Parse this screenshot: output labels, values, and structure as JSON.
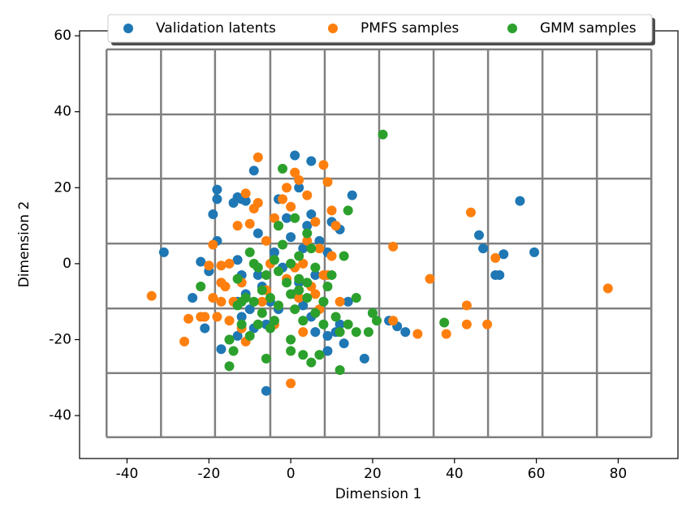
{
  "chart_data": {
    "type": "scatter",
    "xlabel": "Dimension 1",
    "ylabel": "Dimension 2",
    "xlim": [
      -51.6,
      94.6
    ],
    "ylim": [
      -51.3,
      61.3
    ],
    "xticks": [
      -40,
      -20,
      0,
      20,
      40,
      60,
      80
    ],
    "yticks": [
      -40,
      -20,
      0,
      20,
      40,
      60
    ],
    "partition_x": [
      -45.0,
      -31.7,
      -18.5,
      -5.0,
      8.3,
      21.6,
      34.9,
      48.2,
      61.5,
      74.8,
      88.1
    ],
    "partition_y": [
      56.4,
      39.3,
      22.4,
      5.3,
      -11.8,
      -28.8,
      -45.7
    ],
    "partition_color": "#808080",
    "legend": "upper center",
    "series": [
      {
        "name": "Validation latents",
        "color": "#1f77b4",
        "x": [
          -31,
          -22,
          -24,
          -21,
          -18,
          -18,
          -19,
          -18,
          -17,
          -15,
          -14,
          -13,
          -12,
          -11,
          -13,
          -12,
          -13,
          -12,
          -13,
          -11,
          -10,
          -9,
          -9,
          -8,
          -7,
          -6,
          -6,
          -5,
          -4,
          -3,
          -2,
          -1,
          0,
          1,
          2,
          2,
          3,
          4,
          5,
          5,
          6,
          6,
          7,
          8,
          9,
          9,
          10,
          11,
          12,
          13,
          14,
          15,
          18,
          20,
          24,
          26,
          28,
          46,
          47,
          50,
          51,
          52,
          56,
          59.5,
          -20,
          -3,
          1,
          5,
          -8,
          3,
          9,
          12
        ],
        "values": [
          3,
          0.5,
          -9,
          -17,
          19.5,
          17,
          13,
          6,
          -22.5,
          -20,
          16,
          17.5,
          17,
          16.5,
          1,
          -3,
          -10,
          -14,
          -19,
          -8,
          -12,
          24.5,
          -17,
          8,
          -6,
          -16,
          -33.5,
          -10,
          3,
          17,
          -1,
          12,
          7,
          28.5,
          20,
          -5,
          4,
          10,
          27,
          13,
          -3,
          -18,
          6,
          -10,
          -23,
          -19,
          11,
          -18,
          -16,
          -21,
          -10,
          18,
          -25,
          -13,
          -15,
          -16.5,
          -18,
          7.5,
          4,
          -3,
          -3,
          2.5,
          16.5,
          3,
          -2,
          -12,
          -8,
          -14,
          -3,
          -11,
          3,
          9
        ]
      },
      {
        "name": "PMFS samples",
        "color": "#ff7f0e",
        "x": [
          -34,
          -26,
          -25,
          -22,
          -21,
          -20,
          -19,
          -19,
          -18,
          -17,
          -17,
          -16,
          -15,
          -15,
          -14,
          -13,
          -12,
          -12,
          -11,
          -11,
          -10,
          -9,
          -8,
          -8,
          -7,
          -6,
          -6,
          -5,
          -4,
          -4,
          -3,
          -2,
          -1,
          0,
          0,
          1,
          1,
          2,
          2,
          3,
          4,
          4,
          5,
          6,
          7,
          7,
          8,
          8,
          9,
          9,
          10,
          10,
          11,
          12,
          25,
          25,
          31,
          34,
          38,
          43,
          43,
          44,
          48,
          50,
          77.5,
          -17,
          -1,
          6,
          3
        ],
        "values": [
          -8.5,
          -20.5,
          -14.5,
          -14,
          -14,
          -0.5,
          5,
          -9,
          -14,
          -0.5,
          -5,
          -6,
          0,
          -15,
          -10,
          10,
          -5,
          -17,
          -20.5,
          18.5,
          10.5,
          14.5,
          28,
          16,
          -10,
          6,
          -7,
          0,
          12,
          -16,
          10,
          17,
          20,
          15,
          -31.5,
          24,
          -1,
          22,
          -9,
          -18,
          18,
          6,
          -6,
          11,
          4,
          -12,
          -3,
          26,
          21.5,
          -3,
          2,
          14,
          10,
          -10,
          4.5,
          -15,
          -18.5,
          -4,
          -18.5,
          -16,
          -11,
          13.5,
          -16,
          1.5,
          -6.5,
          -10,
          -4,
          -8,
          0
        ]
      },
      {
        "name": "GMM samples",
        "color": "#2ca02c",
        "x": [
          -22,
          -15,
          -15,
          -14,
          -13,
          -12,
          -12,
          -11,
          -10,
          -9,
          -9,
          -8,
          -7,
          -6,
          -5,
          -5,
          -4,
          -3,
          -3,
          -2,
          -2,
          -1,
          0,
          0,
          0,
          1,
          1,
          2,
          2,
          3,
          3,
          4,
          4,
          5,
          6,
          6,
          7,
          8,
          9,
          10,
          11,
          12,
          12,
          13,
          14,
          14,
          16,
          16,
          19,
          20,
          21,
          22.5,
          37.5,
          -13,
          -10,
          -6,
          -4,
          0,
          2,
          4,
          -7,
          -3,
          8,
          5,
          -8
        ],
        "values": [
          -6,
          -20,
          -27,
          -23,
          -11,
          -16,
          -10,
          -9,
          -19,
          -10,
          0,
          -16,
          -7,
          -25,
          -17,
          -9,
          -15,
          -2,
          10,
          25,
          5,
          -5,
          -8,
          -20,
          -23,
          12,
          -12,
          2,
          -4,
          -15,
          -24,
          8,
          -9,
          -26,
          -1,
          -13,
          -24,
          -16,
          -6,
          -3,
          -14,
          -28,
          -18,
          2,
          -16,
          14,
          -18,
          -9,
          -18,
          -13,
          -15,
          34,
          -15.5,
          -4,
          3,
          -3,
          1,
          0,
          -7,
          -5,
          -13,
          -11,
          -10,
          4,
          -1
        ]
      }
    ]
  }
}
